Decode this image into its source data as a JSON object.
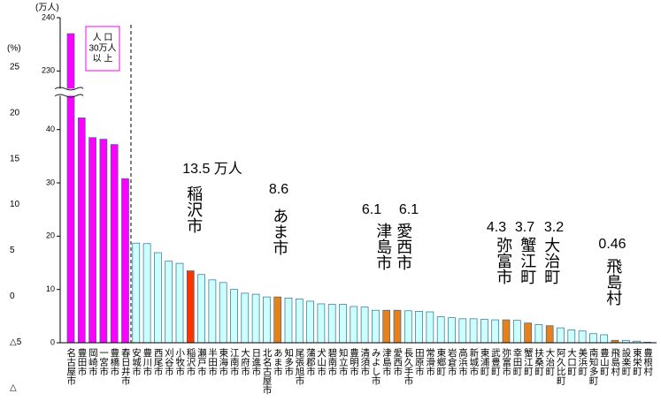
{
  "chart_data": {
    "type": "bar",
    "y_label": "(万人)",
    "y2_label": "(%)",
    "group_label": [
      "人 口",
      "30万人",
      "以 上"
    ],
    "categories": [
      "名古屋市",
      "豊田市",
      "岡崎市",
      "一宮市",
      "豊橋市",
      "春日井市",
      "安城市",
      "豊川市",
      "西尾市",
      "刈谷市",
      "小牧市",
      "稲沢市",
      "瀬戸市",
      "半田市",
      "東海市",
      "江南市",
      "大府市",
      "日進市",
      "北名古屋市",
      "あま市",
      "知多市",
      "尾張旭市",
      "蒲郡市",
      "犬山市",
      "碧南市",
      "知立市",
      "豊明市",
      "清須市",
      "みよし市",
      "津島市",
      "愛西市",
      "長久手市",
      "田原市",
      "常滑市",
      "東郷町",
      "岩倉市",
      "高浜市",
      "新城市",
      "東浦町",
      "武豊町",
      "弥富市",
      "幸田町",
      "蟹江町",
      "扶桑町",
      "大治町",
      "阿久比町",
      "大口町",
      "美浜町",
      "南知多町",
      "豊山町",
      "飛島村",
      "設楽町",
      "東栄町",
      "豊根村"
    ],
    "values": [
      237,
      42.2,
      38.5,
      38.2,
      37.2,
      30.8,
      18.7,
      18.6,
      16.9,
      15.3,
      14.9,
      13.5,
      12.8,
      11.8,
      11.3,
      10,
      9.3,
      9.1,
      8.6,
      8.6,
      8.4,
      8.2,
      7.8,
      7.3,
      7.2,
      7.2,
      6.8,
      6.7,
      6.1,
      6.1,
      6.1,
      6,
      5.9,
      5.8,
      4.9,
      4.7,
      4.5,
      4.5,
      4.4,
      4.3,
      4.3,
      4.2,
      3.7,
      3.4,
      3.2,
      2.8,
      2.4,
      2.2,
      1.7,
      1.5,
      0.46,
      0.45,
      0.3,
      0.1
    ],
    "colors": [
      "#ff00ff",
      "#ff00ff",
      "#ff00ff",
      "#ff00ff",
      "#ff00ff",
      "#ff00ff",
      "#ccffff",
      "#ccffff",
      "#ccffff",
      "#ccffff",
      "#ccffff",
      "#ff3300",
      "#ccffff",
      "#ccffff",
      "#ccffff",
      "#ccffff",
      "#ccffff",
      "#ccffff",
      "#ccffff",
      "#e8801a",
      "#ccffff",
      "#ccffff",
      "#ccffff",
      "#ccffff",
      "#ccffff",
      "#ccffff",
      "#ccffff",
      "#ccffff",
      "#ccffff",
      "#e8801a",
      "#e8801a",
      "#ccffff",
      "#ccffff",
      "#ccffff",
      "#ccffff",
      "#ccffff",
      "#ccffff",
      "#ccffff",
      "#ccffff",
      "#ccffff",
      "#e8801a",
      "#ccffff",
      "#e8801a",
      "#ccffff",
      "#e8801a",
      "#ccffff",
      "#ccffff",
      "#ccffff",
      "#ccffff",
      "#ccffff",
      "#e8801a",
      "#ccffff",
      "#ccffff",
      "#ccffff"
    ],
    "edgecolor": "#2a6f8f",
    "ylim": [
      0,
      240
    ],
    "yticks": [
      0,
      10,
      20,
      30,
      40,
      230,
      240
    ],
    "axis_break": [
      47,
      226
    ],
    "y2lim": [
      -10,
      25
    ],
    "y2ticks": [
      25,
      20,
      15,
      10,
      5,
      0,
      {
        "value": -5,
        "label": "△5"
      },
      {
        "value": -10,
        "label": "△"
      }
    ],
    "annotations": [
      {
        "text": "13.5 万人",
        "category": "稲沢市"
      },
      {
        "text": "8.6",
        "category": "あま市"
      },
      {
        "text": "6.1",
        "category": "津島市"
      },
      {
        "text": "6.1",
        "category": "愛西市"
      },
      {
        "text": "4.3",
        "category": "弥富市"
      },
      {
        "text": "3.7",
        "category": "蟹江町"
      },
      {
        "text": "3.2",
        "category": "大治町"
      },
      {
        "text": "0.46",
        "category": "飛島村"
      }
    ]
  }
}
